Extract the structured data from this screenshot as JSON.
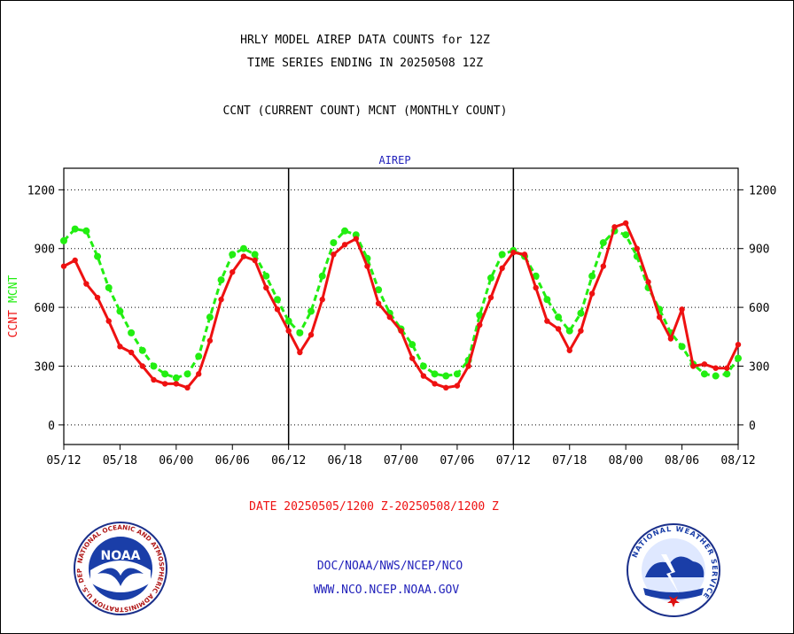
{
  "header": {
    "title_line1": "HRLY MODEL AIREP DATA COUNTS for 12Z",
    "title_line2": "TIME SERIES ENDING IN 20250508 12Z",
    "legend_line": "CCNT (CURRENT COUNT) MCNT (MONTHLY COUNT)"
  },
  "footer": {
    "date_range": "DATE 20250505/1200 Z-20250508/1200 Z",
    "org_path": "DOC/NOAA/NWS/NCEP/NCO",
    "website": "WWW.NCO.NCEP.NOAA.GOV"
  },
  "logos": {
    "left_center": "NOAA",
    "left_ring_text": "NATIONAL OCEANIC AND ATMOSPHERIC ADMINISTRATION U.S. DEPARTMENT OF COMMERCE",
    "right_ring_text": "NATIONAL WEATHER SERVICE"
  },
  "colors": {
    "ccnt": "#ee1111",
    "mcnt": "#22ee11",
    "panel_title": "#2222bb",
    "footer_blue": "#2222bb",
    "date_red": "#ee1111"
  },
  "chart_data": {
    "type": "line",
    "panel_title": "AIREP",
    "ylabel_left": [
      "CCNT",
      "MCNT"
    ],
    "ylim": [
      -100,
      1310
    ],
    "yticks": [
      0,
      300,
      600,
      900,
      1200
    ],
    "xlim": [
      0,
      60
    ],
    "xticks": [
      0,
      5,
      10,
      15,
      20,
      25,
      30,
      35,
      40,
      45,
      50,
      55,
      60
    ],
    "xtick_labels": [
      "05/12",
      "05/18",
      "06/00",
      "06/06",
      "06/12",
      "06/18",
      "07/00",
      "07/06",
      "07/12",
      "07/18",
      "08/00",
      "08/06",
      "08/12"
    ],
    "panel_dividers": [
      20,
      40
    ],
    "grid": "horizontal-dotted",
    "series": [
      {
        "name": "CCNT",
        "color": "#ee1111",
        "values": [
          810,
          840,
          720,
          650,
          530,
          400,
          370,
          300,
          230,
          210,
          210,
          190,
          260,
          430,
          640,
          780,
          860,
          840,
          700,
          590,
          480,
          370,
          460,
          640,
          870,
          920,
          950,
          810,
          620,
          550,
          480,
          340,
          250,
          210,
          190,
          200,
          300,
          510,
          650,
          800,
          880,
          870,
          700,
          530,
          490,
          380,
          480,
          670,
          810,
          1010,
          1030,
          900,
          730,
          550,
          440,
          590,
          300,
          310,
          290,
          290,
          410
        ]
      },
      {
        "name": "MCNT",
        "color": "#22ee11",
        "values": [
          940,
          1000,
          990,
          860,
          700,
          580,
          470,
          380,
          300,
          260,
          240,
          260,
          350,
          550,
          740,
          870,
          900,
          870,
          760,
          640,
          530,
          470,
          580,
          760,
          930,
          990,
          970,
          850,
          690,
          570,
          490,
          410,
          300,
          260,
          250,
          260,
          330,
          560,
          750,
          870,
          890,
          860,
          760,
          640,
          550,
          480,
          570,
          760,
          930,
          990,
          970,
          860,
          700,
          590,
          470,
          400,
          310,
          260,
          250,
          260,
          340
        ]
      }
    ]
  }
}
